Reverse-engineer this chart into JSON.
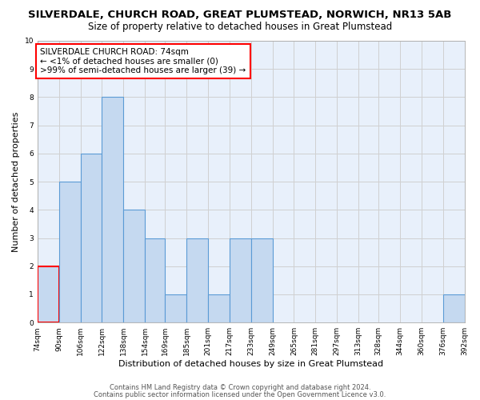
{
  "title": "SILVERDALE, CHURCH ROAD, GREAT PLUMSTEAD, NORWICH, NR13 5AB",
  "subtitle": "Size of property relative to detached houses in Great Plumstead",
  "xlabel": "Distribution of detached houses by size in Great Plumstead",
  "ylabel": "Number of detached properties",
  "bin_labels": [
    "74sqm",
    "90sqm",
    "106sqm",
    "122sqm",
    "138sqm",
    "154sqm",
    "169sqm",
    "185sqm",
    "201sqm",
    "217sqm",
    "233sqm",
    "249sqm",
    "265sqm",
    "281sqm",
    "297sqm",
    "313sqm",
    "328sqm",
    "344sqm",
    "360sqm",
    "376sqm",
    "392sqm"
  ],
  "bar_values": [
    2,
    5,
    6,
    8,
    4,
    3,
    1,
    3,
    1,
    3,
    3,
    0,
    0,
    0,
    0,
    0,
    0,
    0,
    0,
    1,
    0
  ],
  "ylim": [
    0,
    10
  ],
  "bar_color": "#c5d9f0",
  "bar_edgecolor": "#5b9bd5",
  "highlight_bar_index": 0,
  "highlight_bar_edgecolor": "#ff0000",
  "annotation_box_text": "SILVERDALE CHURCH ROAD: 74sqm\n← <1% of detached houses are smaller (0)\n>99% of semi-detached houses are larger (39) →",
  "annotation_box_edgecolor": "#ff0000",
  "annotation_box_facecolor": "#ffffff",
  "footer_line1": "Contains HM Land Registry data © Crown copyright and database right 2024.",
  "footer_line2": "Contains public sector information licensed under the Open Government Licence v3.0.",
  "background_color": "#ffffff",
  "grid_color": "#d0d0d0",
  "title_fontsize": 9.5,
  "subtitle_fontsize": 8.5,
  "axis_label_fontsize": 8,
  "tick_fontsize": 6.5,
  "footer_fontsize": 6,
  "annotation_fontsize": 7.5,
  "bin_edges": [
    74,
    90,
    106,
    122,
    138,
    154,
    169,
    185,
    201,
    217,
    233,
    249,
    265,
    281,
    297,
    313,
    328,
    344,
    360,
    376,
    392
  ]
}
